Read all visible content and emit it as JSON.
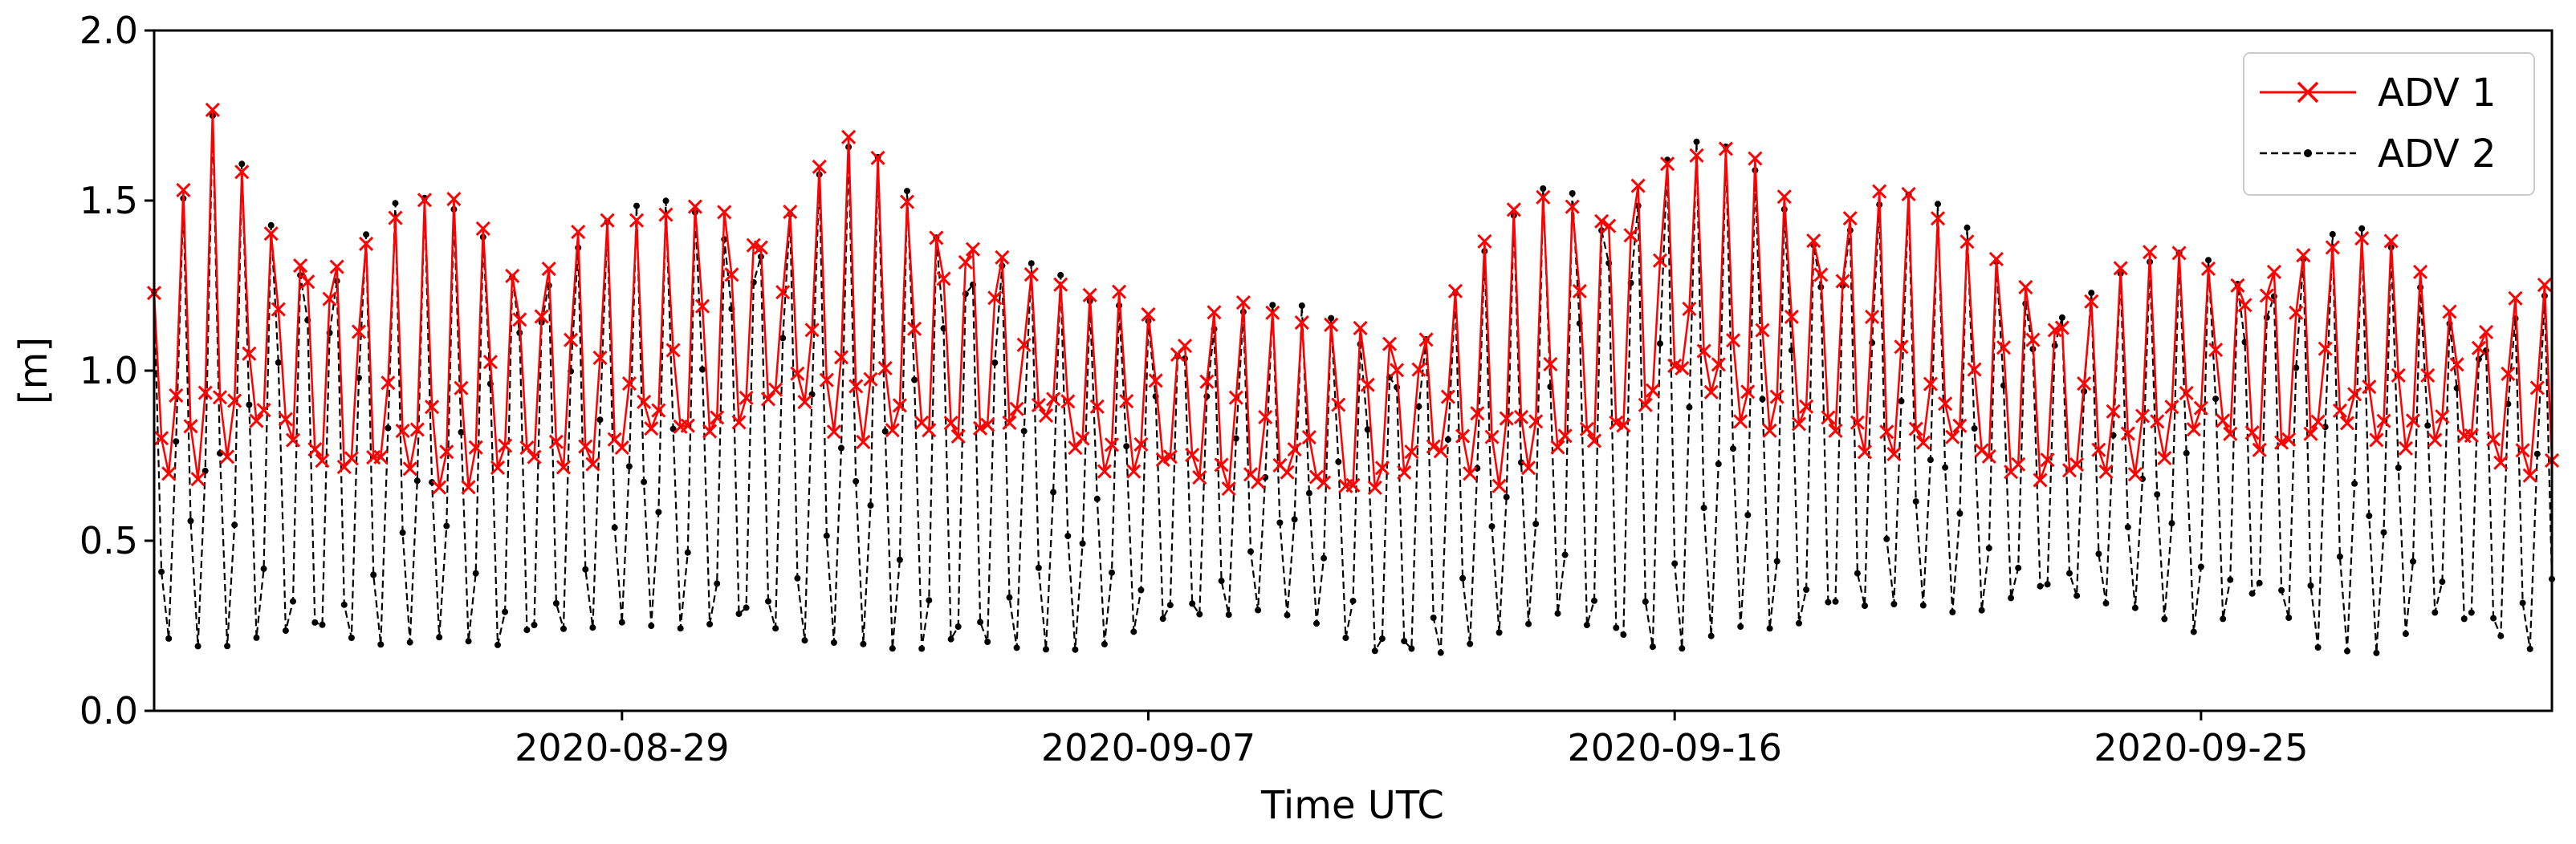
{
  "chart_data": {
    "type": "line",
    "title": "",
    "xlabel": "Time UTC",
    "ylabel": "[m]",
    "x_range": [
      "2020-08-21",
      "2020-10-01"
    ],
    "ylim": [
      0.0,
      2.0
    ],
    "y_ticks": [
      "0.0",
      "0.5",
      "1.0",
      "1.5",
      "2.0"
    ],
    "x_ticks": [
      "2020-08-29",
      "2020-09-07",
      "2020-09-16",
      "2020-09-25"
    ],
    "grid": false,
    "legend_position": "top-right",
    "sampling_interval_hours": 3,
    "series": [
      {
        "name": "ADV 1",
        "color": "#ff0000",
        "marker": "x",
        "line_style": "solid",
        "envelope": {
          "dates": [
            "2020-08-21",
            "2020-08-22",
            "2020-08-23",
            "2020-08-24",
            "2020-08-25",
            "2020-08-26",
            "2020-08-27",
            "2020-08-28",
            "2020-08-29",
            "2020-08-30",
            "2020-08-31",
            "2020-09-01",
            "2020-09-02",
            "2020-09-03",
            "2020-09-04",
            "2020-09-05",
            "2020-09-06",
            "2020-09-07",
            "2020-09-08",
            "2020-09-09",
            "2020-09-10",
            "2020-09-11",
            "2020-09-12",
            "2020-09-13",
            "2020-09-14",
            "2020-09-15",
            "2020-09-16",
            "2020-09-17",
            "2020-09-18",
            "2020-09-19",
            "2020-09-20",
            "2020-09-21",
            "2020-09-22",
            "2020-09-23",
            "2020-09-24",
            "2020-09-25",
            "2020-09-26",
            "2020-09-27",
            "2020-09-28",
            "2020-09-29",
            "2020-09-30",
            "2020-10-01"
          ],
          "high": [
            1.28,
            1.74,
            1.52,
            1.44,
            1.51,
            1.49,
            1.46,
            1.45,
            1.46,
            1.52,
            1.58,
            1.58,
            1.66,
            1.58,
            1.51,
            1.35,
            1.2,
            1.25,
            1.23,
            1.19,
            1.18,
            1.16,
            1.24,
            1.39,
            1.62,
            1.68,
            1.71,
            1.64,
            1.56,
            1.61,
            1.53,
            1.43,
            1.34,
            1.3,
            1.3,
            1.38,
            1.41,
            1.44,
            1.4,
            1.25,
            1.26,
            1.25
          ],
          "baseline": [
            0.72,
            0.72,
            0.85,
            0.75,
            0.7,
            0.68,
            0.72,
            0.75,
            0.76,
            0.82,
            0.88,
            0.92,
            0.82,
            0.8,
            0.85,
            0.86,
            0.75,
            0.72,
            0.7,
            0.68,
            0.65,
            0.7,
            0.74,
            0.7,
            0.74,
            0.85,
            0.98,
            0.88,
            0.85,
            0.8,
            0.78,
            0.76,
            0.72,
            0.68,
            0.74,
            0.82,
            0.8,
            0.82,
            0.8,
            0.82,
            0.75,
            0.72
          ]
        }
      },
      {
        "name": "ADV 2",
        "color": "#000000",
        "marker": "o",
        "line_style": "dashed",
        "envelope": {
          "dates": [
            "2020-08-21",
            "2020-08-22",
            "2020-08-23",
            "2020-08-24",
            "2020-08-25",
            "2020-08-26",
            "2020-08-27",
            "2020-08-28",
            "2020-08-29",
            "2020-08-30",
            "2020-08-31",
            "2020-09-01",
            "2020-09-02",
            "2020-09-03",
            "2020-09-04",
            "2020-09-05",
            "2020-09-06",
            "2020-09-07",
            "2020-09-08",
            "2020-09-09",
            "2020-09-10",
            "2020-09-11",
            "2020-09-12",
            "2020-09-13",
            "2020-09-14",
            "2020-09-15",
            "2020-09-16",
            "2020-09-17",
            "2020-09-18",
            "2020-09-19",
            "2020-09-20",
            "2020-09-21",
            "2020-09-22",
            "2020-09-23",
            "2020-09-24",
            "2020-09-25",
            "2020-09-26",
            "2020-09-27",
            "2020-09-28",
            "2020-09-29",
            "2020-09-30",
            "2020-10-01"
          ],
          "high": [
            1.3,
            1.75,
            1.53,
            1.45,
            1.52,
            1.5,
            1.47,
            1.46,
            1.47,
            1.53,
            1.58,
            1.59,
            1.67,
            1.59,
            1.52,
            1.36,
            1.21,
            1.26,
            1.24,
            1.2,
            1.19,
            1.17,
            1.25,
            1.4,
            1.63,
            1.69,
            1.72,
            1.65,
            1.57,
            1.62,
            1.54,
            1.44,
            1.35,
            1.31,
            1.31,
            1.39,
            1.42,
            1.45,
            1.41,
            1.26,
            1.27,
            1.26
          ],
          "low": [
            0.22,
            0.18,
            0.22,
            0.2,
            0.19,
            0.22,
            0.17,
            0.22,
            0.26,
            0.24,
            0.24,
            0.2,
            0.2,
            0.17,
            0.17,
            0.18,
            0.18,
            0.24,
            0.26,
            0.3,
            0.25,
            0.14,
            0.16,
            0.23,
            0.28,
            0.17,
            0.17,
            0.25,
            0.23,
            0.28,
            0.32,
            0.28,
            0.33,
            0.32,
            0.3,
            0.22,
            0.32,
            0.18,
            0.17,
            0.28,
            0.2,
            0.16
          ]
        }
      }
    ]
  }
}
